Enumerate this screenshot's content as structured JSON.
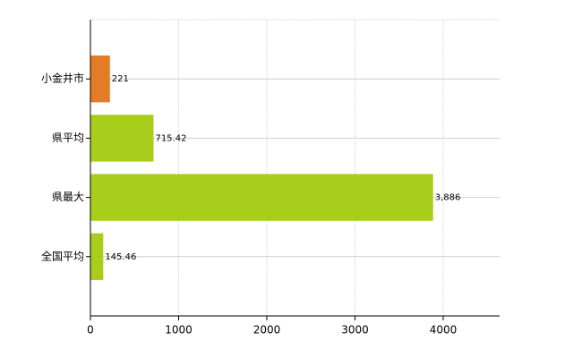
{
  "chart_data": {
    "type": "barh",
    "categories": [
      "小金井市",
      "県平均",
      "県最大",
      "全国平均"
    ],
    "values": [
      221,
      715.42,
      3886,
      145.46
    ],
    "value_labels": [
      "221",
      "715.42",
      "3,886",
      "145.46"
    ],
    "colors": [
      "#e37b27",
      "#a8cd1b",
      "#a8cd1b",
      "#a8cd1b"
    ],
    "xlim": [
      0,
      4640
    ],
    "xticks": [
      0,
      1000,
      2000,
      3000,
      4000
    ],
    "grid": true
  }
}
